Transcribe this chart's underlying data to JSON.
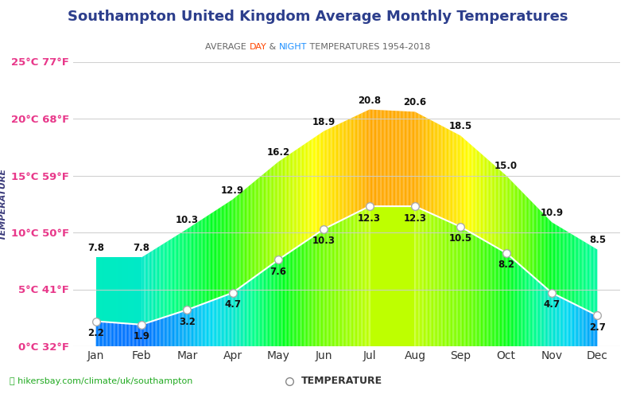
{
  "title": "Southampton United Kingdom Average Monthly Temperatures",
  "subtitle_day_color": "#ff4500",
  "subtitle_night_color": "#1e90ff",
  "months": [
    "Jan",
    "Feb",
    "Mar",
    "Apr",
    "May",
    "Jun",
    "Jul",
    "Aug",
    "Sep",
    "Oct",
    "Nov",
    "Dec"
  ],
  "day_temps": [
    7.8,
    7.8,
    10.3,
    12.9,
    16.2,
    18.9,
    20.8,
    20.6,
    18.5,
    15.0,
    10.9,
    8.5
  ],
  "night_temps": [
    2.2,
    1.9,
    3.2,
    4.7,
    7.6,
    10.3,
    12.3,
    12.3,
    10.5,
    8.2,
    4.7,
    2.7
  ],
  "ylim": [
    0,
    25
  ],
  "yticks": [
    0,
    5,
    10,
    15,
    20,
    25
  ],
  "ytick_labels": [
    "0°C 32°F",
    "5°C 41°F",
    "10°C 50°F",
    "15°C 59°F",
    "20°C 68°F",
    "25°C 77°F"
  ],
  "ytick_color": "#e8388a",
  "ylabel": "TEMPERATURE",
  "ylabel_color": "#3a3a7a",
  "title_color": "#2c3e8c",
  "bg_color": "#ffffff",
  "grid_color": "#cccccc",
  "watermark": "hikersbay.com/climate/uk/southampton",
  "legend_label": "TEMPERATURE",
  "color_stops": [
    [
      0.0,
      [
        0.0,
        0.05,
        0.95
      ]
    ],
    [
      2.0,
      [
        0.0,
        0.45,
        1.0
      ]
    ],
    [
      4.0,
      [
        0.0,
        0.85,
        0.95
      ]
    ],
    [
      6.0,
      [
        0.0,
        1.0,
        0.55
      ]
    ],
    [
      8.0,
      [
        0.0,
        1.0,
        0.1
      ]
    ],
    [
      10.0,
      [
        0.4,
        1.0,
        0.0
      ]
    ],
    [
      12.0,
      [
        0.7,
        1.0,
        0.0
      ]
    ],
    [
      14.0,
      [
        1.0,
        1.0,
        0.0
      ]
    ],
    [
      16.0,
      [
        1.0,
        0.75,
        0.0
      ]
    ],
    [
      18.0,
      [
        1.0,
        0.4,
        0.0
      ]
    ],
    [
      20.0,
      [
        1.0,
        0.1,
        0.0
      ]
    ],
    [
      21.0,
      [
        0.95,
        0.0,
        0.0
      ]
    ]
  ]
}
